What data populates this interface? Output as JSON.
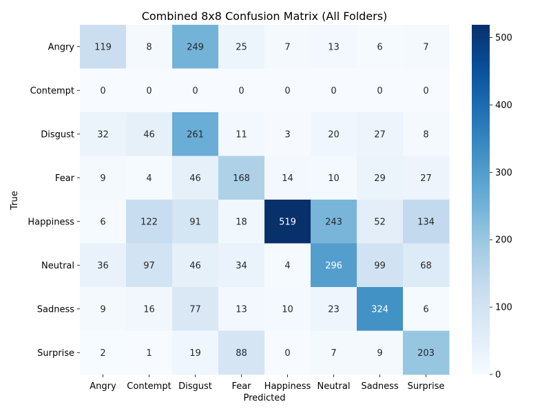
{
  "chart_data": {
    "type": "heatmap",
    "title": "Combined 8x8 Confusion Matrix (All Folders)",
    "xlabel": "Predicted",
    "ylabel": "True",
    "x_categories": [
      "Angry",
      "Contempt",
      "Disgust",
      "Fear",
      "Happiness",
      "Neutral",
      "Sadness",
      "Surprise"
    ],
    "y_categories": [
      "Angry",
      "Contempt",
      "Disgust",
      "Fear",
      "Happiness",
      "Neutral",
      "Sadness",
      "Surprise"
    ],
    "values": [
      [
        119,
        8,
        249,
        25,
        7,
        13,
        6,
        7
      ],
      [
        0,
        0,
        0,
        0,
        0,
        0,
        0,
        0
      ],
      [
        32,
        46,
        261,
        11,
        3,
        20,
        27,
        8
      ],
      [
        9,
        4,
        46,
        168,
        14,
        10,
        29,
        27
      ],
      [
        6,
        122,
        91,
        18,
        519,
        243,
        52,
        134
      ],
      [
        36,
        97,
        46,
        34,
        4,
        296,
        99,
        68
      ],
      [
        9,
        16,
        77,
        13,
        10,
        23,
        324,
        6
      ],
      [
        2,
        1,
        19,
        88,
        0,
        7,
        9,
        203
      ]
    ],
    "colorbar": {
      "min": 0,
      "max": 519,
      "ticks": [
        0,
        100,
        200,
        300,
        400,
        500
      ],
      "colormap": "Blues"
    },
    "grid": false
  }
}
